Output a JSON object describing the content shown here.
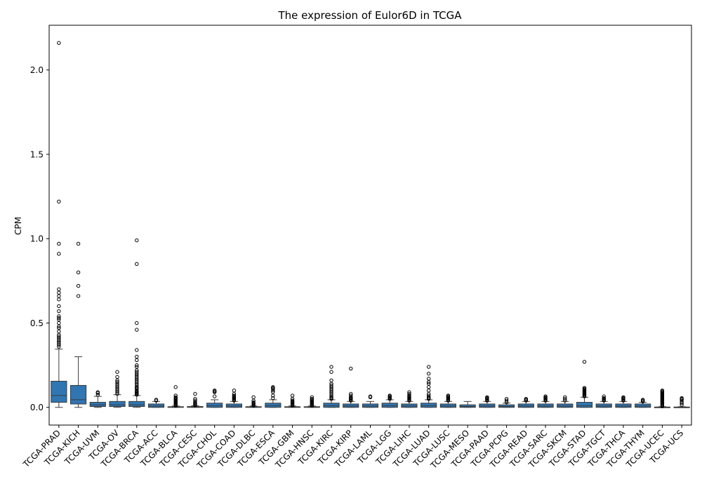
{
  "chart_data": {
    "type": "box",
    "title": "The expression of Eulor6D in TCGA",
    "xlabel": "",
    "ylabel": "CPM",
    "ylim": [
      -0.105,
      2.265
    ],
    "yticks": [
      "0.0",
      "0.5",
      "1.0",
      "1.5",
      "2.0"
    ],
    "ytick_values": [
      0,
      0.5,
      1.0,
      1.5,
      2.0
    ],
    "box_color": "#2f76b3",
    "categories": [
      "TCGA-PRAD",
      "TCGA-KICH",
      "TCGA-UVM",
      "TCGA-OV",
      "TCGA-BRCA",
      "TCGA-ACC",
      "TCGA-BLCA",
      "TCGA-CESC",
      "TCGA-CHOL",
      "TCGA-COAD",
      "TCGA-DLBC",
      "TCGA-ESCA",
      "TCGA-GBM",
      "TCGA-HNSC",
      "TCGA-KIRC",
      "TCGA-KIRP",
      "TCGA-LAML",
      "TCGA-LGG",
      "TCGA-LIHC",
      "TCGA-LUAD",
      "TCGA-LUSC",
      "TCGA-MESO",
      "TCGA-PAAD",
      "TCGA-PCPG",
      "TCGA-READ",
      "TCGA-SARC",
      "TCGA-SKCM",
      "TCGA-STAD",
      "TCGA-TGCT",
      "TCGA-THCA",
      "TCGA-THYM",
      "TCGA-UCEC",
      "TCGA-UCS"
    ],
    "boxes": [
      {
        "whislo": 0,
        "q1": 0.03,
        "med": 0.07,
        "q3": 0.155,
        "whishi": 0.345,
        "fliers": [
          0.36,
          0.37,
          0.38,
          0.39,
          0.4,
          0.41,
          0.42,
          0.43,
          0.45,
          0.47,
          0.48,
          0.5,
          0.52,
          0.53,
          0.54,
          0.57,
          0.6,
          0.64,
          0.66,
          0.68,
          0.7,
          0.91,
          0.97,
          1.22,
          2.16
        ]
      },
      {
        "whislo": 0,
        "q1": 0.02,
        "med": 0.045,
        "q3": 0.13,
        "whishi": 0.3,
        "fliers": [
          0.66,
          0.72,
          0.8,
          0.97
        ]
      },
      {
        "whislo": 0,
        "q1": 0.005,
        "med": 0.015,
        "q3": 0.03,
        "whishi": 0.065,
        "fliers": [
          0.075,
          0.085,
          0.09
        ]
      },
      {
        "whislo": 0,
        "q1": 0.005,
        "med": 0.015,
        "q3": 0.035,
        "whishi": 0.075,
        "fliers": [
          0.08,
          0.09,
          0.1,
          0.11,
          0.12,
          0.13,
          0.14,
          0.15,
          0.16,
          0.18,
          0.21
        ]
      },
      {
        "whislo": 0,
        "q1": 0.005,
        "med": 0.015,
        "q3": 0.035,
        "whishi": 0.07,
        "fliers": [
          0.075,
          0.08,
          0.085,
          0.09,
          0.095,
          0.1,
          0.11,
          0.115,
          0.12,
          0.13,
          0.14,
          0.15,
          0.16,
          0.17,
          0.18,
          0.19,
          0.2,
          0.21,
          0.22,
          0.24,
          0.25,
          0.28,
          0.3,
          0.34,
          0.46,
          0.5,
          0.85,
          0.99
        ]
      },
      {
        "whislo": 0,
        "q1": 0.0,
        "med": 0.008,
        "q3": 0.02,
        "whishi": 0.035,
        "fliers": [
          0.04,
          0.045
        ]
      },
      {
        "whislo": 0,
        "q1": 0.0,
        "med": 0.002,
        "q3": 0.004,
        "whishi": 0.008,
        "fliers": [
          0.01,
          0.015,
          0.02,
          0.025,
          0.03,
          0.035,
          0.04,
          0.045,
          0.05,
          0.055,
          0.06,
          0.07,
          0.12
        ]
      },
      {
        "whislo": 0,
        "q1": 0.0,
        "med": 0.002,
        "q3": 0.005,
        "whishi": 0.01,
        "fliers": [
          0.012,
          0.015,
          0.02,
          0.025,
          0.03,
          0.04,
          0.05,
          0.08
        ]
      },
      {
        "whislo": 0,
        "q1": 0.0,
        "med": 0.01,
        "q3": 0.025,
        "whishi": 0.045,
        "fliers": [
          0.065,
          0.09,
          0.095,
          0.1
        ]
      },
      {
        "whislo": 0,
        "q1": 0.0,
        "med": 0.008,
        "q3": 0.02,
        "whishi": 0.035,
        "fliers": [
          0.04,
          0.045,
          0.05,
          0.055,
          0.06,
          0.065,
          0.07,
          0.08,
          0.1
        ]
      },
      {
        "whislo": 0,
        "q1": 0.0,
        "med": 0.002,
        "q3": 0.004,
        "whishi": 0.008,
        "fliers": [
          0.01,
          0.015,
          0.02,
          0.025,
          0.03,
          0.04,
          0.06
        ]
      },
      {
        "whislo": 0,
        "q1": 0.0,
        "med": 0.01,
        "q3": 0.025,
        "whishi": 0.045,
        "fliers": [
          0.055,
          0.07,
          0.09,
          0.1,
          0.11,
          0.115,
          0.12
        ]
      },
      {
        "whislo": 0,
        "q1": 0.0,
        "med": 0.002,
        "q3": 0.004,
        "whishi": 0.008,
        "fliers": [
          0.01,
          0.015,
          0.02,
          0.025,
          0.03,
          0.035,
          0.04,
          0.05,
          0.07
        ]
      },
      {
        "whislo": 0,
        "q1": 0.0,
        "med": 0.002,
        "q3": 0.004,
        "whishi": 0.008,
        "fliers": [
          0.01,
          0.015,
          0.02,
          0.025,
          0.03,
          0.035,
          0.04,
          0.045,
          0.05,
          0.06
        ]
      },
      {
        "whislo": 0,
        "q1": 0.0,
        "med": 0.01,
        "q3": 0.025,
        "whishi": 0.045,
        "fliers": [
          0.05,
          0.055,
          0.06,
          0.07,
          0.08,
          0.09,
          0.1,
          0.11,
          0.12,
          0.13,
          0.14,
          0.16,
          0.21,
          0.24
        ]
      },
      {
        "whislo": 0,
        "q1": 0.0,
        "med": 0.008,
        "q3": 0.02,
        "whishi": 0.035,
        "fliers": [
          0.04,
          0.045,
          0.05,
          0.055,
          0.06,
          0.07,
          0.08,
          0.23
        ]
      },
      {
        "whislo": 0,
        "q1": 0.0,
        "med": 0.008,
        "q3": 0.02,
        "whishi": 0.035,
        "fliers": [
          0.06,
          0.065
        ]
      },
      {
        "whislo": 0,
        "q1": 0.0,
        "med": 0.01,
        "q3": 0.025,
        "whishi": 0.045,
        "fliers": [
          0.05,
          0.055,
          0.06,
          0.065,
          0.07
        ]
      },
      {
        "whislo": 0,
        "q1": 0.0,
        "med": 0.008,
        "q3": 0.02,
        "whishi": 0.035,
        "fliers": [
          0.04,
          0.045,
          0.05,
          0.055,
          0.06,
          0.065,
          0.07,
          0.08,
          0.09
        ]
      },
      {
        "whislo": 0,
        "q1": 0.0,
        "med": 0.01,
        "q3": 0.025,
        "whishi": 0.045,
        "fliers": [
          0.05,
          0.055,
          0.06,
          0.07,
          0.08,
          0.1,
          0.12,
          0.14,
          0.15,
          0.17,
          0.2,
          0.24
        ]
      },
      {
        "whislo": 0,
        "q1": 0.0,
        "med": 0.008,
        "q3": 0.02,
        "whishi": 0.035,
        "fliers": [
          0.04,
          0.045,
          0.05,
          0.055,
          0.06,
          0.065,
          0.07
        ]
      },
      {
        "whislo": 0,
        "q1": 0.0,
        "med": 0.005,
        "q3": 0.015,
        "whishi": 0.035,
        "fliers": []
      },
      {
        "whislo": 0,
        "q1": 0.0,
        "med": 0.008,
        "q3": 0.02,
        "whishi": 0.035,
        "fliers": [
          0.04,
          0.045,
          0.05,
          0.055,
          0.06
        ]
      },
      {
        "whislo": 0,
        "q1": 0.0,
        "med": 0.005,
        "q3": 0.015,
        "whishi": 0.025,
        "fliers": [
          0.03,
          0.04,
          0.05
        ]
      },
      {
        "whislo": 0,
        "q1": 0.0,
        "med": 0.008,
        "q3": 0.02,
        "whishi": 0.035,
        "fliers": [
          0.04,
          0.045,
          0.05
        ]
      },
      {
        "whislo": 0,
        "q1": 0.0,
        "med": 0.008,
        "q3": 0.02,
        "whishi": 0.035,
        "fliers": [
          0.04,
          0.045,
          0.05,
          0.055,
          0.06,
          0.065
        ]
      },
      {
        "whislo": 0,
        "q1": 0.0,
        "med": 0.008,
        "q3": 0.02,
        "whishi": 0.035,
        "fliers": [
          0.04,
          0.05,
          0.06
        ]
      },
      {
        "whislo": 0,
        "q1": 0.0,
        "med": 0.01,
        "q3": 0.03,
        "whishi": 0.06,
        "fliers": [
          0.065,
          0.07,
          0.075,
          0.08,
          0.085,
          0.09,
          0.095,
          0.1,
          0.105,
          0.11,
          0.115,
          0.27
        ]
      },
      {
        "whislo": 0,
        "q1": 0.0,
        "med": 0.008,
        "q3": 0.02,
        "whishi": 0.035,
        "fliers": [
          0.04,
          0.045,
          0.05,
          0.055,
          0.065
        ]
      },
      {
        "whislo": 0,
        "q1": 0.0,
        "med": 0.008,
        "q3": 0.02,
        "whishi": 0.035,
        "fliers": [
          0.04,
          0.045,
          0.05,
          0.055,
          0.06
        ]
      },
      {
        "whislo": 0,
        "q1": 0.0,
        "med": 0.008,
        "q3": 0.02,
        "whishi": 0.03,
        "fliers": [
          0.035,
          0.04,
          0.045
        ]
      },
      {
        "whislo": 0,
        "q1": 0.0,
        "med": 0.0,
        "q3": 0.002,
        "whishi": 0.004,
        "fliers": [
          0.006,
          0.01,
          0.015,
          0.02,
          0.025,
          0.03,
          0.035,
          0.04,
          0.045,
          0.05,
          0.055,
          0.06,
          0.065,
          0.07,
          0.075,
          0.08,
          0.085,
          0.09,
          0.095,
          0.1
        ]
      },
      {
        "whislo": 0,
        "q1": 0.0,
        "med": 0.0,
        "q3": 0.002,
        "whishi": 0.004,
        "fliers": [
          0.015,
          0.025,
          0.035,
          0.045,
          0.05,
          0.055
        ]
      }
    ]
  }
}
